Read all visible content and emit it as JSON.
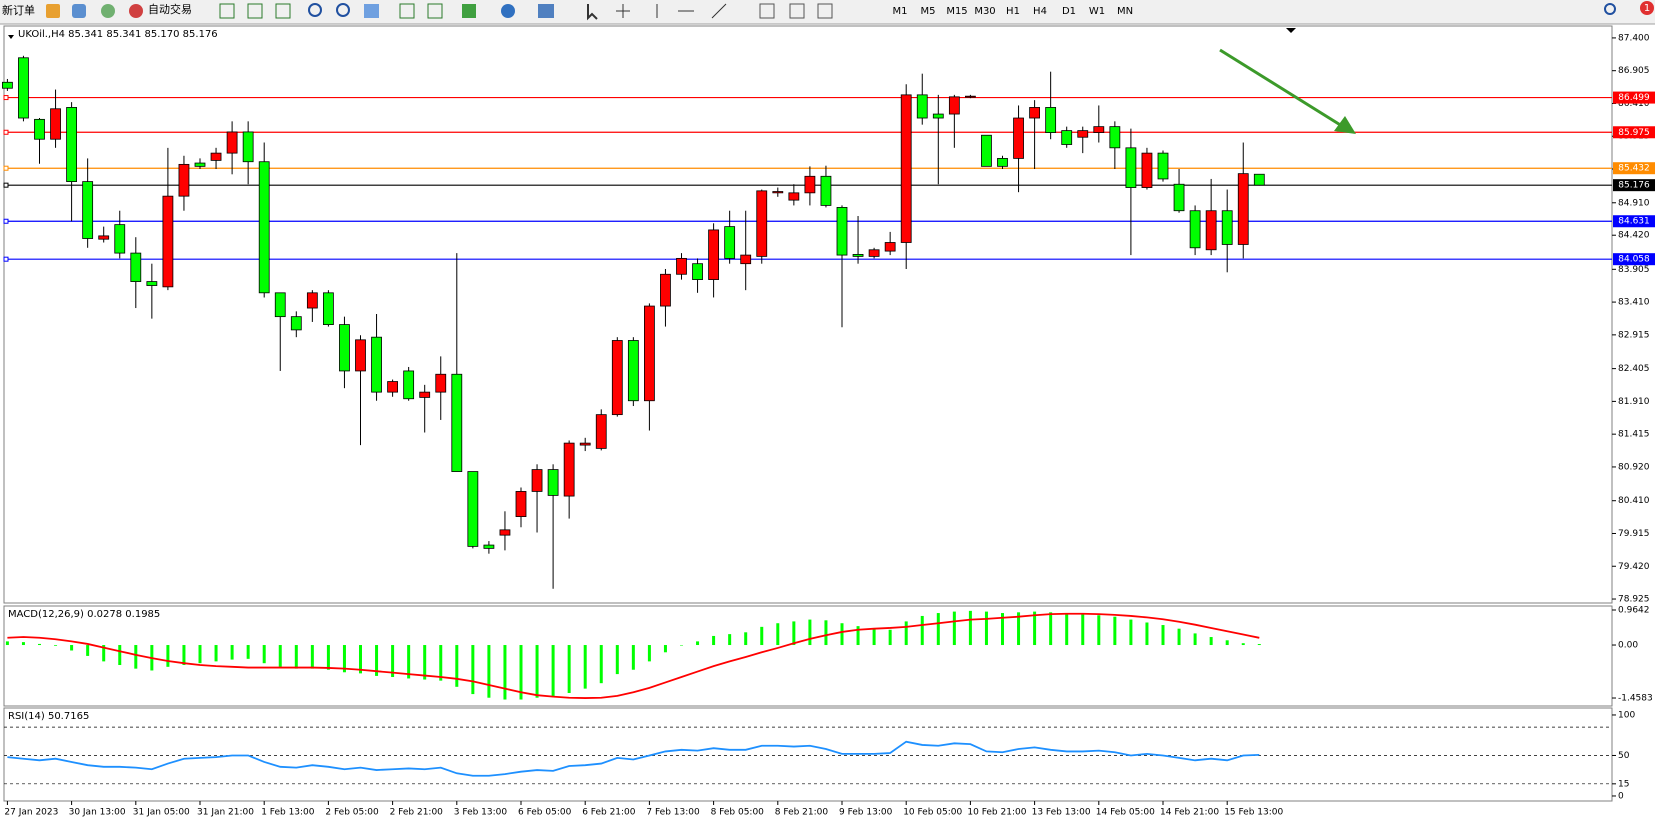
{
  "toolbar": {
    "new_order": "新订单",
    "auto_trading": "自动交易",
    "timeframes": [
      "M1",
      "M5",
      "M15",
      "M30",
      "H1",
      "H4",
      "D1",
      "W1",
      "MN"
    ],
    "notifications": 1
  },
  "chart_data": [
    {
      "type": "candlestick",
      "title": "UKOil.,H4  85.341 85.341 85.170 85.176",
      "up_color": "#ff0000",
      "down_color": "#00ff00",
      "categories": [
        "27 Jan 2023",
        null,
        null,
        null,
        "30 Jan 13:00",
        null,
        null,
        null,
        "31 Jan 05:00",
        null,
        null,
        null,
        "31 Jan 21:00",
        null,
        null,
        null,
        "1 Feb 13:00",
        null,
        null,
        null,
        "2 Feb 05:00",
        null,
        null,
        null,
        "2 Feb 21:00",
        null,
        null,
        null,
        "3 Feb 13:00",
        null,
        null,
        null,
        "6 Feb 05:00",
        null,
        null,
        null,
        "6 Feb 21:00",
        null,
        null,
        null,
        "7 Feb 13:00",
        null,
        null,
        null,
        "8 Feb 05:00",
        null,
        null,
        null,
        "8 Feb 21:00",
        null,
        null,
        null,
        "9 Feb 13:00",
        null,
        null,
        null,
        "10 Feb 05:00",
        null,
        null,
        null,
        "10 Feb 21:00",
        null,
        null,
        null,
        "13 Feb 13:00",
        null,
        null,
        null,
        "14 Feb 05:00",
        null,
        null,
        null,
        "14 Feb 21:00",
        null,
        null,
        null,
        "15 Feb 13:00",
        null,
        null
      ],
      "open": [
        86.73,
        87.1,
        86.17,
        85.87,
        86.35,
        85.23,
        84.36,
        84.58,
        84.15,
        83.72,
        83.64,
        85.01,
        85.51,
        85.55,
        85.66,
        85.98,
        85.53,
        83.55,
        83.19,
        83.32,
        83.55,
        83.07,
        82.37,
        82.88,
        82.05,
        82.37,
        81.97,
        82.05,
        82.32,
        80.85,
        79.74,
        79.89,
        80.17,
        80.55,
        80.88,
        80.48,
        81.25,
        81.2,
        81.71,
        82.83,
        81.92,
        83.35,
        83.83,
        83.99,
        83.75,
        84.55,
        83.99,
        84.1,
        85.06,
        84.95,
        85.06,
        85.31,
        84.84,
        84.13,
        84.1,
        84.18,
        84.31,
        86.54,
        86.25,
        86.25,
        86.51,
        85.93,
        85.58,
        85.58,
        86.19,
        86.35,
        86.0,
        85.9,
        85.97,
        86.06,
        85.74,
        85.14,
        85.66,
        85.19,
        84.79,
        84.2,
        84.79,
        84.28,
        85.341
      ],
      "high": [
        86.78,
        87.13,
        86.19,
        86.62,
        86.43,
        85.58,
        84.55,
        84.79,
        84.39,
        83.99,
        85.74,
        85.62,
        85.58,
        85.74,
        86.14,
        86.14,
        85.82,
        83.55,
        83.27,
        83.59,
        83.59,
        83.19,
        82.91,
        83.23,
        82.24,
        82.43,
        82.16,
        82.59,
        84.15,
        80.85,
        79.8,
        80.25,
        80.61,
        80.96,
        80.96,
        81.32,
        81.36,
        81.79,
        82.88,
        82.88,
        83.39,
        83.91,
        84.15,
        84.07,
        84.6,
        84.79,
        84.79,
        85.11,
        85.14,
        85.19,
        85.46,
        85.47,
        84.87,
        84.71,
        84.23,
        84.47,
        86.7,
        86.86,
        86.54,
        86.54,
        86.54,
        85.93,
        85.62,
        86.38,
        86.46,
        86.89,
        86.06,
        86.06,
        86.38,
        86.14,
        86.03,
        85.74,
        85.7,
        85.42,
        84.87,
        85.27,
        85.11,
        85.82,
        85.341
      ],
      "low": [
        86.6,
        86.14,
        85.5,
        85.74,
        84.63,
        84.23,
        84.31,
        84.07,
        83.32,
        83.16,
        83.59,
        84.79,
        85.42,
        85.42,
        85.34,
        85.19,
        83.48,
        82.37,
        82.88,
        83.11,
        83.04,
        82.11,
        81.25,
        81.92,
        81.98,
        81.92,
        81.44,
        81.63,
        80.85,
        79.69,
        79.61,
        79.66,
        80.01,
        79.93,
        79.08,
        80.14,
        81.16,
        81.17,
        81.68,
        81.84,
        81.47,
        83.04,
        83.75,
        83.55,
        83.48,
        83.99,
        83.59,
        83.99,
        85.0,
        84.87,
        84.87,
        84.84,
        83.03,
        83.99,
        84.07,
        84.12,
        83.91,
        86.09,
        85.19,
        85.74,
        86.49,
        85.46,
        85.42,
        85.07,
        85.42,
        85.87,
        85.74,
        85.66,
        85.82,
        85.42,
        84.12,
        85.11,
        85.23,
        84.76,
        84.12,
        84.12,
        83.86,
        84.07,
        85.17
      ],
      "close": [
        86.64,
        86.19,
        85.87,
        86.33,
        85.23,
        84.37,
        84.41,
        84.15,
        83.72,
        83.66,
        85.01,
        85.49,
        85.46,
        85.66,
        85.98,
        85.53,
        83.55,
        83.19,
        82.99,
        83.55,
        83.07,
        82.37,
        82.84,
        82.05,
        82.21,
        81.95,
        82.05,
        82.32,
        80.85,
        79.72,
        79.69,
        79.97,
        80.55,
        80.88,
        80.49,
        81.28,
        81.28,
        81.71,
        82.83,
        81.92,
        83.35,
        83.83,
        84.07,
        83.75,
        84.5,
        84.07,
        84.12,
        85.09,
        85.08,
        85.06,
        85.31,
        84.87,
        84.12,
        84.1,
        84.2,
        84.31,
        86.54,
        86.19,
        86.19,
        86.51,
        86.52,
        85.46,
        85.46,
        86.19,
        86.35,
        85.97,
        85.79,
        86.0,
        86.06,
        85.74,
        85.14,
        85.66,
        85.27,
        84.79,
        84.23,
        84.79,
        84.28,
        85.35,
        85.176
      ],
      "ylim": [
        78.865,
        87.58
      ],
      "yticks": [
        {
          "value": 87.4,
          "label": "87.400"
        },
        86.905,
        {
          "value": 86.41,
          "label": "86.410"
        },
        85.915,
        {
          "value": 85.42,
          "label": "85.420"
        },
        {
          "value": 84.91,
          "label": "84.910"
        },
        {
          "value": 84.42,
          "label": "84.420"
        },
        83.905,
        {
          "value": 83.41,
          "label": "83.410"
        },
        82.915,
        82.405,
        {
          "value": 81.91,
          "label": "81.910"
        },
        81.415,
        {
          "value": 80.92,
          "label": "80.920"
        },
        {
          "value": 80.41,
          "label": "80.410"
        },
        79.915,
        {
          "value": 79.42,
          "label": "79.420"
        },
        78.925
      ],
      "hlines": [
        {
          "value": 86.499,
          "color": "#ff0000"
        },
        {
          "value": 85.975,
          "color": "#ff0000"
        },
        {
          "value": 85.432,
          "color": "#ff8c00"
        },
        {
          "value": 85.176,
          "color": "#000000"
        },
        {
          "value": 84.631,
          "color": "#0000ff"
        },
        {
          "value": 84.058,
          "color": "#0000ff"
        }
      ]
    },
    {
      "type": "macd",
      "title": "MACD(12,26,9) 0.0278 0.1985",
      "ylim": [
        -1.678,
        1.074
      ],
      "yticks": [
        0.9642,
        {
          "value": 0,
          "label": "0.00"
        },
        -1.4583
      ],
      "series": [
        {
          "name": "MACD",
          "kind": "bar",
          "color": "#00ff00",
          "values": [
            0.1,
            0.08,
            0.03,
            -0.02,
            -0.15,
            -0.3,
            -0.45,
            -0.55,
            -0.65,
            -0.7,
            -0.6,
            -0.55,
            -0.5,
            -0.45,
            -0.4,
            -0.38,
            -0.5,
            -0.6,
            -0.65,
            -0.65,
            -0.68,
            -0.75,
            -0.78,
            -0.85,
            -0.88,
            -0.92,
            -0.95,
            -0.98,
            -1.15,
            -1.35,
            -1.45,
            -1.5,
            -1.5,
            -1.45,
            -1.42,
            -1.32,
            -1.2,
            -1.05,
            -0.8,
            -0.68,
            -0.45,
            -0.2,
            0.0,
            0.1,
            0.25,
            0.3,
            0.35,
            0.5,
            0.6,
            0.65,
            0.7,
            0.68,
            0.6,
            0.52,
            0.45,
            0.42,
            0.65,
            0.8,
            0.88,
            0.92,
            0.94,
            0.92,
            0.88,
            0.9,
            0.92,
            0.9,
            0.87,
            0.85,
            0.82,
            0.78,
            0.7,
            0.62,
            0.55,
            0.45,
            0.32,
            0.22,
            0.13,
            0.05,
            0.0278
          ]
        },
        {
          "name": "Signal",
          "kind": "line",
          "color": "#ff0000",
          "values": [
            0.2,
            0.22,
            0.2,
            0.16,
            0.1,
            0.03,
            -0.07,
            -0.17,
            -0.27,
            -0.36,
            -0.44,
            -0.5,
            -0.55,
            -0.58,
            -0.6,
            -0.62,
            -0.62,
            -0.62,
            -0.62,
            -0.62,
            -0.63,
            -0.65,
            -0.68,
            -0.72,
            -0.76,
            -0.8,
            -0.84,
            -0.88,
            -0.93,
            -1.0,
            -1.1,
            -1.2,
            -1.3,
            -1.38,
            -1.42,
            -1.45,
            -1.46,
            -1.45,
            -1.4,
            -1.3,
            -1.18,
            -1.03,
            -0.88,
            -0.73,
            -0.58,
            -0.45,
            -0.33,
            -0.2,
            -0.08,
            0.05,
            0.17,
            0.27,
            0.36,
            0.42,
            0.45,
            0.47,
            0.5,
            0.55,
            0.6,
            0.65,
            0.7,
            0.72,
            0.75,
            0.78,
            0.82,
            0.85,
            0.86,
            0.86,
            0.85,
            0.83,
            0.8,
            0.76,
            0.71,
            0.64,
            0.56,
            0.47,
            0.38,
            0.29,
            0.1985
          ]
        }
      ]
    },
    {
      "type": "rsi",
      "title": "RSI(14) 50.7165",
      "ylim": [
        -6.2,
        108.6
      ],
      "yticks": [
        100,
        50,
        15,
        0
      ],
      "levels": [
        85,
        50,
        15
      ],
      "series": [
        {
          "name": "RSI",
          "kind": "line",
          "color": "#1e90ff",
          "values": [
            48,
            46,
            44,
            46,
            42,
            38,
            36,
            36,
            35,
            33,
            40,
            46,
            47,
            48,
            50,
            50,
            42,
            36,
            35,
            38,
            36,
            33,
            35,
            32,
            33,
            34,
            33,
            35,
            28,
            25,
            25,
            27,
            30,
            32,
            31,
            37,
            38,
            40,
            47,
            45,
            50,
            55,
            57,
            56,
            59,
            57,
            57,
            62,
            62,
            61,
            62,
            58,
            52,
            52,
            52,
            53,
            67,
            63,
            62,
            65,
            64,
            55,
            54,
            58,
            60,
            57,
            55,
            55,
            56,
            54,
            50,
            52,
            50,
            47,
            44,
            46,
            44,
            50,
            50.7165
          ]
        }
      ]
    }
  ]
}
